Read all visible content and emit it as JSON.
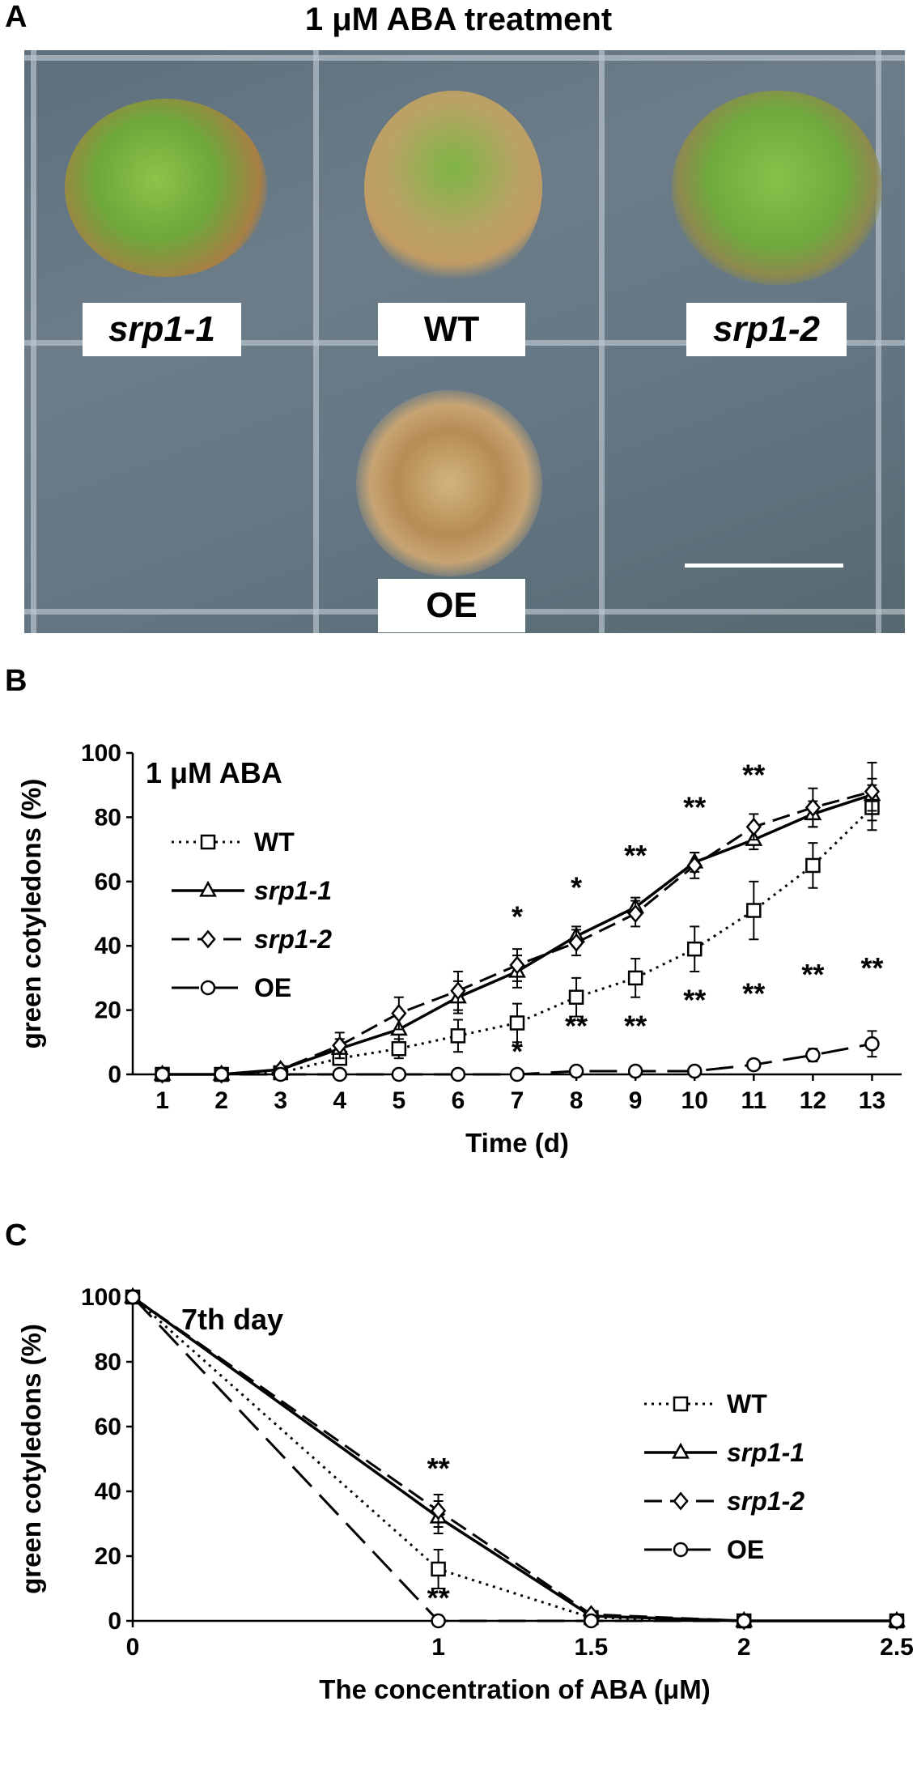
{
  "panels": {
    "a": {
      "letter": "A",
      "title": "1 μM ABA treatment",
      "labels": {
        "srp1_1": "srp1-1",
        "wt": "WT",
        "srp1_2": "srp1-2",
        "oe": "OE"
      }
    },
    "b": {
      "letter": "B"
    },
    "c": {
      "letter": "C"
    }
  },
  "chart_data": [
    {
      "type": "line",
      "annotation": "1 μM ABA",
      "xlabel": "Time (d)",
      "ylabel": "green cotyledons (%)",
      "x": [
        1,
        2,
        3,
        4,
        5,
        6,
        7,
        8,
        9,
        10,
        11,
        12,
        13
      ],
      "xlim": [
        0.5,
        13.5
      ],
      "ylim": [
        0,
        100
      ],
      "yticks": [
        0,
        20,
        40,
        60,
        80,
        100
      ],
      "grid": false,
      "legend": "top-left",
      "series": [
        {
          "name": "WT",
          "marker": "square",
          "dash": "dotted",
          "values": [
            0,
            0,
            0.5,
            5,
            8,
            12,
            16,
            24,
            30,
            39,
            51,
            65,
            83
          ],
          "err": [
            0,
            0,
            0.5,
            2,
            3,
            5,
            6,
            6,
            6,
            7,
            9,
            7,
            7
          ]
        },
        {
          "name": "srp1-1",
          "marker": "triangle",
          "dash": "solid",
          "values": [
            0,
            0,
            1.5,
            8,
            14,
            24,
            32,
            43,
            52,
            66,
            73,
            81,
            87
          ],
          "err": [
            0,
            0,
            1,
            3,
            4,
            5,
            5,
            3,
            3,
            3,
            3,
            4,
            5
          ]
        },
        {
          "name": "srp1-2",
          "marker": "diamond",
          "dash": "dashed",
          "values": [
            0,
            0,
            1.5,
            9,
            19,
            26,
            34,
            41,
            50,
            65,
            77,
            83,
            88
          ],
          "err": [
            0,
            0,
            1,
            4,
            5,
            6,
            5,
            4,
            4,
            4,
            4,
            6,
            9
          ]
        },
        {
          "name": "OE",
          "marker": "circle",
          "dash": "longdash",
          "values": [
            0,
            0,
            0,
            0,
            0,
            0,
            0,
            1,
            1,
            1,
            3,
            6,
            9.5
          ],
          "err": [
            0,
            0,
            0,
            0,
            0,
            0,
            0,
            0.5,
            0.5,
            0.5,
            1,
            2,
            4
          ]
        }
      ],
      "significance": [
        {
          "x": 7,
          "y": 46,
          "text": "*"
        },
        {
          "x": 8,
          "y": 55,
          "text": "*"
        },
        {
          "x": 9,
          "y": 65,
          "text": "**"
        },
        {
          "x": 10,
          "y": 80,
          "text": "**"
        },
        {
          "x": 11,
          "y": 90,
          "text": "**"
        },
        {
          "x": 7,
          "y": 4,
          "text": "*"
        },
        {
          "x": 8,
          "y": 12,
          "text": "**"
        },
        {
          "x": 9,
          "y": 12,
          "text": "**"
        },
        {
          "x": 10,
          "y": 20,
          "text": "**"
        },
        {
          "x": 11,
          "y": 22,
          "text": "**"
        },
        {
          "x": 12,
          "y": 28,
          "text": "**"
        },
        {
          "x": 13,
          "y": 30,
          "text": "**"
        }
      ]
    },
    {
      "type": "line",
      "annotation": "7th day",
      "xlabel": "The concentration of ABA (μM)",
      "ylabel": "green cotyledons (%)",
      "x": [
        0,
        1,
        1.5,
        2,
        2.5
      ],
      "xticks": [
        "0",
        "1",
        "1.5",
        "2",
        "2.5"
      ],
      "ylim": [
        0,
        100
      ],
      "yticks": [
        0,
        20,
        40,
        60,
        80,
        100
      ],
      "grid": false,
      "legend": "right",
      "series": [
        {
          "name": "WT",
          "marker": "square",
          "dash": "dotted",
          "values": [
            100,
            16,
            1,
            0,
            0
          ],
          "err": [
            0,
            6,
            1,
            0,
            0
          ]
        },
        {
          "name": "srp1-1",
          "marker": "triangle",
          "dash": "solid",
          "values": [
            100,
            32,
            1.5,
            0,
            0
          ],
          "err": [
            0,
            5,
            1,
            0,
            0
          ]
        },
        {
          "name": "srp1-2",
          "marker": "diamond",
          "dash": "dashed",
          "values": [
            100,
            34,
            2,
            0,
            0
          ],
          "err": [
            0,
            5,
            1,
            0,
            0
          ]
        },
        {
          "name": "OE",
          "marker": "circle",
          "dash": "longdash",
          "values": [
            100,
            0,
            0,
            0,
            0
          ],
          "err": [
            0,
            0,
            0,
            0,
            0
          ]
        }
      ],
      "significance": [
        {
          "x": 1,
          "y": 44,
          "text": "**"
        },
        {
          "x": 1,
          "y": 4,
          "text": "**"
        }
      ]
    }
  ]
}
